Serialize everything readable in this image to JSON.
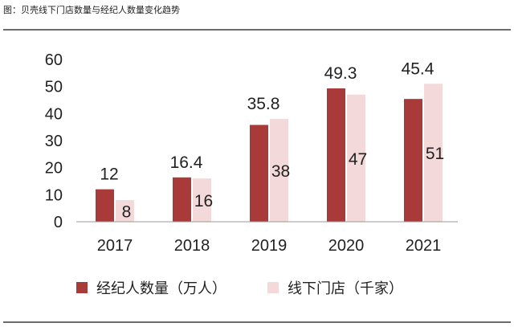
{
  "figure": {
    "title": "图：贝壳线下门店数量与经纪人数量变化趋势"
  },
  "colors": {
    "agents": "#a83a3a",
    "stores": "#f3d9d9",
    "axis": "#999999",
    "rule": "#6b6b6b"
  },
  "chart_data": {
    "type": "bar",
    "categories": [
      "2017",
      "2018",
      "2019",
      "2020",
      "2021"
    ],
    "series": [
      {
        "name": "经纪人数量（万人）",
        "values": [
          12,
          16.4,
          35.8,
          49.3,
          45.4
        ],
        "labels": [
          "12",
          "16.4",
          "35.8",
          "49.3",
          "45.4"
        ]
      },
      {
        "name": "线下门店（千家）",
        "values": [
          8,
          16,
          38,
          47,
          51
        ],
        "labels": [
          "8",
          "16",
          "38",
          "47",
          "51"
        ]
      }
    ],
    "ylim": [
      0,
      60
    ],
    "yticks": [
      "0",
      "10",
      "20",
      "30",
      "40",
      "50",
      "60"
    ],
    "grid": false,
    "legend": "bottom"
  }
}
